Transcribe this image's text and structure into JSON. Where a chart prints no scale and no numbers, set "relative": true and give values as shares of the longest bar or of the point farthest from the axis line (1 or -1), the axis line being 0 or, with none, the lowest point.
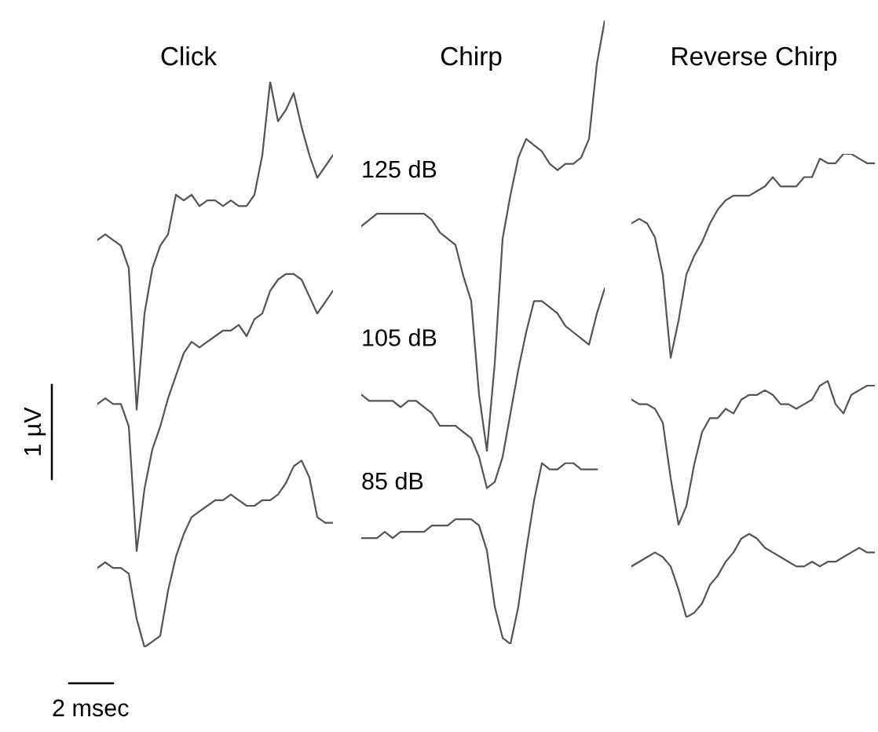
{
  "chart_data": [
    {
      "type": "line",
      "title": "Click",
      "relative": true,
      "marker": "none",
      "line_style": "solid",
      "categories": [
        null,
        null,
        null,
        null,
        null,
        null,
        null,
        null,
        null,
        null,
        null,
        null,
        null,
        null,
        null,
        null,
        null,
        null,
        null,
        null,
        null,
        null,
        null,
        null,
        null,
        null,
        null,
        null,
        null,
        null,
        null
      ],
      "annotations": [
        "1 µV",
        "2 msec"
      ],
      "series": [
        {
          "color": "#555555",
          "values": [
            0.72,
            0.73,
            0.72,
            0.71,
            0.67,
            0.42,
            0.59,
            0.67,
            0.71,
            0.73,
            0.8,
            0.79,
            0.8,
            0.78,
            0.79,
            0.79,
            0.78,
            0.79,
            0.78,
            0.78,
            0.8,
            0.87,
            1.0,
            0.93,
            0.95,
            0.98,
            0.92,
            0.87,
            0.83,
            0.85,
            0.87
          ]
        },
        {
          "color": "#555555",
          "values": [
            0.43,
            0.44,
            0.43,
            0.43,
            0.39,
            0.17,
            0.28,
            0.35,
            0.39,
            0.44,
            0.48,
            0.52,
            0.54,
            0.53,
            0.54,
            0.55,
            0.56,
            0.56,
            0.57,
            0.55,
            0.58,
            0.59,
            0.63,
            0.65,
            0.66,
            0.66,
            0.65,
            0.62,
            0.59,
            0.61,
            0.63
          ]
        },
        {
          "color": "#555555",
          "values": [
            0.14,
            0.15,
            0.14,
            0.14,
            0.13,
            0.05,
            0.0,
            0.01,
            0.02,
            0.1,
            0.16,
            0.2,
            0.23,
            0.24,
            0.25,
            0.26,
            0.26,
            0.27,
            0.26,
            0.25,
            0.25,
            0.26,
            0.26,
            0.27,
            0.29,
            0.32,
            0.33,
            0.3,
            0.23,
            0.22,
            0.22
          ]
        }
      ]
    },
    {
      "type": "line",
      "title": "Chirp",
      "relative": true,
      "marker": "none",
      "line_style": "solid",
      "categories": [
        null,
        null,
        null,
        null,
        null,
        null,
        null,
        null,
        null,
        null,
        null,
        null,
        null,
        null,
        null,
        null,
        null,
        null,
        null,
        null,
        null,
        null,
        null,
        null,
        null,
        null,
        null,
        null,
        null,
        null,
        null,
        null
      ],
      "annotations": [
        "125 dB",
        "105 dB",
        "85 dB"
      ],
      "series": [
        {
          "color": "#555555",
          "values": [
            0.67,
            0.68,
            0.69,
            0.69,
            0.69,
            0.69,
            0.69,
            0.69,
            0.69,
            0.68,
            0.66,
            0.65,
            0.64,
            0.59,
            0.55,
            0.4,
            0.31,
            0.45,
            0.65,
            0.72,
            0.78,
            0.81,
            0.8,
            0.79,
            0.77,
            0.76,
            0.77,
            0.77,
            0.78,
            0.81,
            0.93,
            1.0
          ]
        },
        {
          "color": "#555555",
          "values": [
            0.4,
            0.39,
            0.39,
            0.39,
            0.39,
            0.38,
            0.39,
            0.39,
            0.38,
            0.37,
            0.35,
            0.35,
            0.35,
            0.34,
            0.33,
            0.3,
            0.25,
            0.26,
            0.3,
            0.37,
            0.44,
            0.5,
            0.55,
            0.55,
            0.54,
            0.53,
            0.51,
            0.5,
            0.49,
            0.48,
            0.53,
            0.57
          ]
        },
        {
          "color": "#555555",
          "values": [
            0.17,
            0.17,
            0.17,
            0.18,
            0.17,
            0.18,
            0.18,
            0.18,
            0.18,
            0.19,
            0.19,
            0.19,
            0.2,
            0.2,
            0.2,
            0.19,
            0.15,
            0.06,
            0.01,
            0.0,
            0.06,
            0.15,
            0.23,
            0.29,
            0.28,
            0.28,
            0.29,
            0.29,
            0.28,
            0.28,
            0.28,
            null
          ]
        }
      ]
    },
    {
      "type": "line",
      "title": "Reverse Chirp",
      "relative": true,
      "marker": "none",
      "line_style": "solid",
      "categories": [
        null,
        null,
        null,
        null,
        null,
        null,
        null,
        null,
        null,
        null,
        null,
        null,
        null,
        null,
        null,
        null,
        null,
        null,
        null,
        null,
        null,
        null,
        null,
        null,
        null,
        null,
        null,
        null,
        null,
        null,
        null,
        null
      ],
      "series": [
        {
          "color": "#555555",
          "values": [
            0.85,
            0.86,
            0.85,
            0.82,
            0.74,
            0.56,
            0.64,
            0.74,
            0.78,
            0.81,
            0.85,
            0.88,
            0.9,
            0.91,
            0.91,
            0.91,
            0.92,
            0.93,
            0.95,
            0.93,
            0.93,
            0.93,
            0.95,
            0.95,
            0.99,
            0.98,
            0.98,
            1.0,
            1.0,
            0.99,
            0.98,
            0.98
          ]
        },
        {
          "color": "#555555",
          "values": [
            0.47,
            0.46,
            0.46,
            0.45,
            0.42,
            0.3,
            0.2,
            0.24,
            0.33,
            0.4,
            0.43,
            0.43,
            0.45,
            0.44,
            0.47,
            0.48,
            0.48,
            0.49,
            0.48,
            0.46,
            0.46,
            0.45,
            0.46,
            0.47,
            0.5,
            0.51,
            0.46,
            0.44,
            0.48,
            0.49,
            0.5,
            0.5
          ]
        },
        {
          "color": "#555555",
          "values": [
            0.11,
            0.12,
            0.13,
            0.14,
            0.13,
            0.11,
            0.06,
            0.0,
            0.01,
            0.03,
            0.07,
            0.09,
            0.12,
            0.14,
            0.17,
            0.18,
            0.17,
            0.15,
            0.14,
            0.13,
            0.12,
            0.11,
            0.11,
            0.12,
            0.11,
            0.12,
            0.12,
            0.13,
            0.14,
            0.15,
            0.14,
            0.14
          ]
        }
      ]
    }
  ]
}
